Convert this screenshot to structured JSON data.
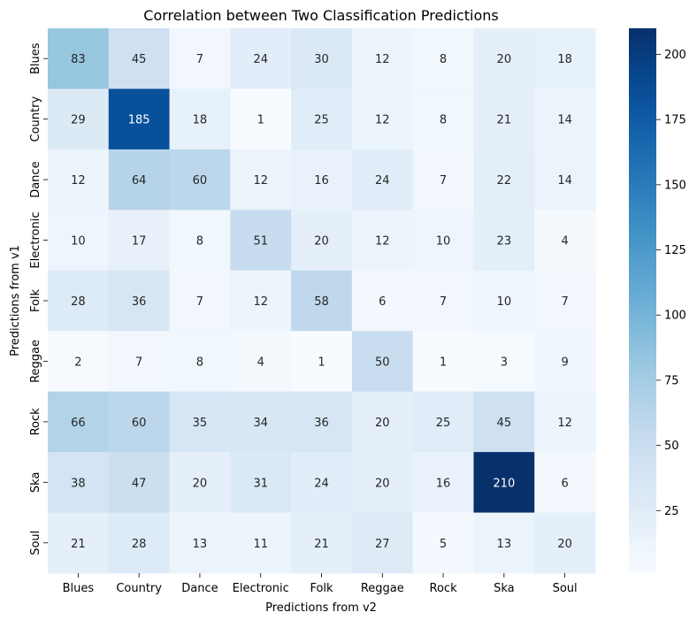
{
  "chart_data": {
    "type": "heatmap",
    "title": "Correlation between Two Classification Predictions",
    "xlabel": "Predictions from v2",
    "ylabel": "Predictions from v1",
    "x_categories": [
      "Blues",
      "Country",
      "Dance",
      "Electronic",
      "Folk",
      "Reggae",
      "Rock",
      "Ska",
      "Soul"
    ],
    "y_categories": [
      "Blues",
      "Country",
      "Dance",
      "Electronic",
      "Folk",
      "Reggae",
      "Rock",
      "Ska",
      "Soul"
    ],
    "values": [
      [
        83,
        45,
        7,
        24,
        30,
        12,
        8,
        20,
        18
      ],
      [
        29,
        185,
        18,
        1,
        25,
        12,
        8,
        21,
        14
      ],
      [
        12,
        64,
        60,
        12,
        16,
        24,
        7,
        22,
        14
      ],
      [
        10,
        17,
        8,
        51,
        20,
        12,
        10,
        23,
        4
      ],
      [
        28,
        36,
        7,
        12,
        58,
        6,
        7,
        10,
        7
      ],
      [
        2,
        7,
        8,
        4,
        1,
        50,
        1,
        3,
        9
      ],
      [
        66,
        60,
        35,
        34,
        36,
        20,
        25,
        45,
        12
      ],
      [
        38,
        47,
        20,
        31,
        24,
        20,
        16,
        210,
        6
      ],
      [
        21,
        28,
        13,
        11,
        21,
        27,
        5,
        13,
        20
      ]
    ],
    "colormap": "Blues",
    "vmin": 1,
    "vmax": 210,
    "colorbar_ticks": [
      "25",
      "50",
      "75",
      "100",
      "125",
      "150",
      "175",
      "200"
    ],
    "annot": true,
    "grid": false,
    "legend": "colorbar-right"
  }
}
